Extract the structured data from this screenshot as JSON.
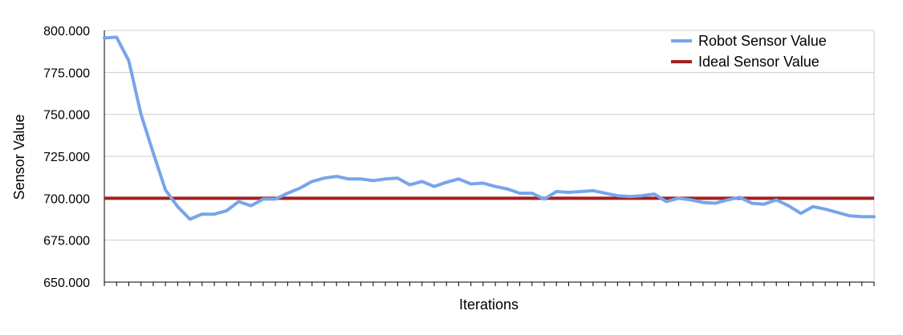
{
  "chart_data": {
    "type": "line",
    "title": "",
    "xlabel": "Iterations",
    "ylabel": "Sensor Value",
    "ylim": [
      650,
      800
    ],
    "yticks": [
      "650.000",
      "675.000",
      "700.000",
      "725.000",
      "750.000",
      "775.000",
      "800.000"
    ],
    "ytick_values": [
      650,
      675,
      700,
      725,
      750,
      775,
      800
    ],
    "grid": true,
    "legend_position": "top-right",
    "series": [
      {
        "name": "Robot Sensor Value",
        "color": "#76a5ea",
        "values": [
          795.5,
          796,
          782,
          750,
          727,
          705,
          695,
          687.5,
          690.5,
          690.5,
          692.5,
          698,
          695.5,
          699.5,
          699.5,
          703,
          706,
          710,
          712,
          713,
          711.5,
          711.5,
          710.5,
          711.5,
          712,
          708,
          710,
          707,
          709.5,
          711.5,
          708.5,
          709,
          707,
          705.5,
          703,
          703,
          699.5,
          704,
          703.5,
          704,
          704.5,
          703,
          701.5,
          701,
          701.5,
          702.5,
          698,
          700,
          699,
          697.5,
          697,
          699,
          700.5,
          697,
          696.5,
          699,
          695.5,
          691,
          695,
          693.5,
          691.5,
          689.5,
          689,
          689
        ]
      },
      {
        "name": "Ideal Sensor Value",
        "color": "#a31f1f",
        "values": [
          700,
          700
        ]
      }
    ]
  }
}
